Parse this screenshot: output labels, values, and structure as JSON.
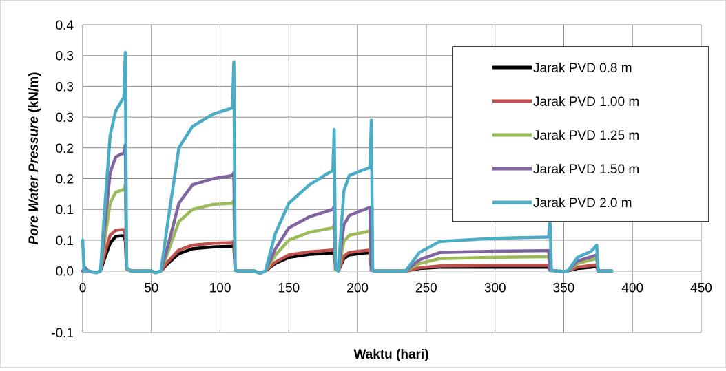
{
  "chart_data": {
    "type": "line",
    "title": "",
    "xlabel": "Waktu (hari)",
    "ylabel_italic": "Pore  Water Pressure",
    "ylabel_rest": " (kN/m)",
    "xlim": [
      0,
      450
    ],
    "ylim": [
      -0.1,
      0.4
    ],
    "x_ticks": [
      0,
      50,
      100,
      150,
      200,
      250,
      300,
      350,
      400,
      450
    ],
    "x_tick_labels": [
      "0",
      "50",
      "100",
      "150",
      "200",
      "250",
      "300",
      "350",
      "400",
      "450"
    ],
    "y_ticks": [
      -0.1,
      0.0,
      0.05,
      0.1,
      0.15,
      0.2,
      0.25,
      0.3,
      0.35,
      0.4
    ],
    "y_tick_labels": [
      "-0.1",
      "0.0",
      "0.1",
      "0.1",
      "0.2",
      "0.2",
      "0.3",
      "0.3",
      "0.3",
      "0.4"
    ],
    "grid": true,
    "legend_position": "top-right",
    "series": [
      {
        "name": "Jarak PVD 0.8 m",
        "color": "#000000",
        "points": [
          [
            0,
            0
          ],
          [
            2,
            0.002
          ],
          [
            4,
            0
          ],
          [
            10,
            -0.003
          ],
          [
            13,
            0
          ],
          [
            16,
            0.02
          ],
          [
            20,
            0.045
          ],
          [
            24,
            0.056
          ],
          [
            28,
            0.057
          ],
          [
            30,
            0.057
          ],
          [
            31,
            0.05
          ],
          [
            32,
            0.003
          ],
          [
            35,
            0
          ],
          [
            50,
            0
          ],
          [
            53,
            -0.003
          ],
          [
            57,
            0
          ],
          [
            62,
            0.012
          ],
          [
            70,
            0.028
          ],
          [
            80,
            0.036
          ],
          [
            95,
            0.039
          ],
          [
            109,
            0.04
          ],
          [
            110,
            0.042
          ],
          [
            111,
            0.001
          ],
          [
            113,
            0
          ],
          [
            125,
            0
          ],
          [
            129,
            -0.004
          ],
          [
            133,
            0
          ],
          [
            140,
            0.012
          ],
          [
            150,
            0.022
          ],
          [
            165,
            0.027
          ],
          [
            182,
            0.029
          ],
          [
            183,
            0.031
          ],
          [
            184,
            0.002
          ],
          [
            186,
            0
          ],
          [
            190,
            0.02
          ],
          [
            194,
            0.026
          ],
          [
            205,
            0.029
          ],
          [
            209,
            0.03
          ],
          [
            210,
            0.001
          ],
          [
            212,
            0
          ],
          [
            230,
            0
          ],
          [
            235,
            0
          ],
          [
            245,
            0.004
          ],
          [
            260,
            0.006
          ],
          [
            300,
            0.006
          ],
          [
            339,
            0.006
          ],
          [
            340,
            0.001
          ],
          [
            345,
            0
          ],
          [
            350,
            -0.001
          ],
          [
            353,
            0
          ],
          [
            360,
            0.004
          ],
          [
            370,
            0.006
          ],
          [
            374,
            0.007
          ],
          [
            375,
            0
          ],
          [
            385,
            0
          ]
        ]
      },
      {
        "name": "Jarak PVD 1.00 m",
        "color": "#c0504d",
        "points": [
          [
            0,
            0
          ],
          [
            2,
            0.003
          ],
          [
            4,
            0
          ],
          [
            10,
            -0.003
          ],
          [
            13,
            0
          ],
          [
            16,
            0.028
          ],
          [
            20,
            0.058
          ],
          [
            24,
            0.066
          ],
          [
            28,
            0.067
          ],
          [
            30,
            0.067
          ],
          [
            31,
            0.058
          ],
          [
            32,
            0.003
          ],
          [
            35,
            0
          ],
          [
            50,
            0
          ],
          [
            53,
            -0.003
          ],
          [
            57,
            0
          ],
          [
            62,
            0.015
          ],
          [
            70,
            0.034
          ],
          [
            80,
            0.042
          ],
          [
            95,
            0.045
          ],
          [
            109,
            0.046
          ],
          [
            110,
            0.048
          ],
          [
            111,
            0.001
          ],
          [
            113,
            0
          ],
          [
            125,
            0
          ],
          [
            129,
            -0.004
          ],
          [
            133,
            0
          ],
          [
            140,
            0.014
          ],
          [
            150,
            0.026
          ],
          [
            165,
            0.031
          ],
          [
            182,
            0.034
          ],
          [
            183,
            0.036
          ],
          [
            184,
            0.002
          ],
          [
            186,
            0
          ],
          [
            190,
            0.024
          ],
          [
            194,
            0.03
          ],
          [
            205,
            0.033
          ],
          [
            209,
            0.034
          ],
          [
            210,
            0.001
          ],
          [
            212,
            0
          ],
          [
            230,
            0
          ],
          [
            235,
            0
          ],
          [
            245,
            0.005
          ],
          [
            260,
            0.008
          ],
          [
            300,
            0.009
          ],
          [
            339,
            0.009
          ],
          [
            340,
            0.001
          ],
          [
            345,
            0
          ],
          [
            350,
            -0.001
          ],
          [
            353,
            0
          ],
          [
            360,
            0.006
          ],
          [
            370,
            0.009
          ],
          [
            374,
            0.01
          ],
          [
            375,
            0
          ],
          [
            385,
            0
          ]
        ]
      },
      {
        "name": "Jarak PVD 1.25 m",
        "color": "#9bbb59",
        "points": [
          [
            0,
            0
          ],
          [
            2,
            0.004
          ],
          [
            4,
            0
          ],
          [
            10,
            -0.003
          ],
          [
            13,
            0
          ],
          [
            16,
            0.05
          ],
          [
            20,
            0.11
          ],
          [
            24,
            0.128
          ],
          [
            28,
            0.131
          ],
          [
            30,
            0.132
          ],
          [
            31,
            0.14
          ],
          [
            32,
            0.004
          ],
          [
            35,
            0
          ],
          [
            50,
            0
          ],
          [
            53,
            -0.003
          ],
          [
            57,
            0
          ],
          [
            62,
            0.03
          ],
          [
            70,
            0.08
          ],
          [
            80,
            0.1
          ],
          [
            95,
            0.108
          ],
          [
            109,
            0.11
          ],
          [
            110,
            0.115
          ],
          [
            111,
            0.001
          ],
          [
            113,
            0
          ],
          [
            125,
            0
          ],
          [
            129,
            -0.004
          ],
          [
            133,
            0
          ],
          [
            140,
            0.025
          ],
          [
            150,
            0.05
          ],
          [
            165,
            0.063
          ],
          [
            182,
            0.07
          ],
          [
            183,
            0.075
          ],
          [
            184,
            0.002
          ],
          [
            186,
            0
          ],
          [
            190,
            0.048
          ],
          [
            194,
            0.058
          ],
          [
            205,
            0.063
          ],
          [
            209,
            0.065
          ],
          [
            210,
            0.001
          ],
          [
            212,
            0
          ],
          [
            230,
            0
          ],
          [
            235,
            0
          ],
          [
            245,
            0.012
          ],
          [
            260,
            0.02
          ],
          [
            300,
            0.022
          ],
          [
            339,
            0.023
          ],
          [
            340,
            0.001
          ],
          [
            345,
            0
          ],
          [
            350,
            -0.001
          ],
          [
            353,
            0
          ],
          [
            360,
            0.012
          ],
          [
            370,
            0.018
          ],
          [
            374,
            0.02
          ],
          [
            375,
            0
          ],
          [
            385,
            0
          ]
        ]
      },
      {
        "name": "Jarak PVD 1.50 m",
        "color": "#8064a2",
        "points": [
          [
            0,
            0
          ],
          [
            2,
            0.005
          ],
          [
            4,
            0
          ],
          [
            10,
            -0.003
          ],
          [
            13,
            0
          ],
          [
            16,
            0.07
          ],
          [
            20,
            0.16
          ],
          [
            24,
            0.185
          ],
          [
            28,
            0.19
          ],
          [
            30,
            0.191
          ],
          [
            31,
            0.205
          ],
          [
            32,
            0.005
          ],
          [
            35,
            0
          ],
          [
            50,
            0
          ],
          [
            53,
            -0.003
          ],
          [
            57,
            0
          ],
          [
            62,
            0.04
          ],
          [
            70,
            0.11
          ],
          [
            80,
            0.14
          ],
          [
            95,
            0.15
          ],
          [
            109,
            0.155
          ],
          [
            110,
            0.16
          ],
          [
            111,
            0.001
          ],
          [
            113,
            0
          ],
          [
            125,
            0
          ],
          [
            129,
            -0.004
          ],
          [
            133,
            0
          ],
          [
            140,
            0.035
          ],
          [
            150,
            0.07
          ],
          [
            165,
            0.088
          ],
          [
            182,
            0.1
          ],
          [
            183,
            0.105
          ],
          [
            184,
            0.003
          ],
          [
            186,
            0
          ],
          [
            190,
            0.075
          ],
          [
            194,
            0.09
          ],
          [
            205,
            0.1
          ],
          [
            209,
            0.103
          ],
          [
            210,
            0.001
          ],
          [
            212,
            0
          ],
          [
            230,
            0
          ],
          [
            235,
            0
          ],
          [
            245,
            0.018
          ],
          [
            260,
            0.03
          ],
          [
            300,
            0.032
          ],
          [
            339,
            0.033
          ],
          [
            340,
            0.001
          ],
          [
            345,
            0
          ],
          [
            350,
            -0.001
          ],
          [
            353,
            0
          ],
          [
            360,
            0.016
          ],
          [
            370,
            0.023
          ],
          [
            374,
            0.026
          ],
          [
            375,
            0
          ],
          [
            385,
            0
          ]
        ]
      },
      {
        "name": "Jarak PVD 2.0 m",
        "color": "#4bacc6",
        "points": [
          [
            0,
            0.05
          ],
          [
            1,
            0
          ],
          [
            4,
            0
          ],
          [
            10,
            -0.003
          ],
          [
            13,
            0
          ],
          [
            16,
            0.1
          ],
          [
            20,
            0.22
          ],
          [
            24,
            0.26
          ],
          [
            28,
            0.275
          ],
          [
            30,
            0.282
          ],
          [
            31,
            0.355
          ],
          [
            32,
            0.005
          ],
          [
            35,
            0
          ],
          [
            50,
            0
          ],
          [
            53,
            -0.003
          ],
          [
            57,
            0
          ],
          [
            62,
            0.08
          ],
          [
            70,
            0.2
          ],
          [
            80,
            0.235
          ],
          [
            95,
            0.255
          ],
          [
            105,
            0.262
          ],
          [
            109,
            0.265
          ],
          [
            110,
            0.34
          ],
          [
            111,
            0.001
          ],
          [
            113,
            0
          ],
          [
            125,
            0
          ],
          [
            129,
            -0.004
          ],
          [
            133,
            0
          ],
          [
            140,
            0.06
          ],
          [
            150,
            0.11
          ],
          [
            165,
            0.14
          ],
          [
            178,
            0.158
          ],
          [
            182,
            0.163
          ],
          [
            183,
            0.23
          ],
          [
            184,
            0.003
          ],
          [
            186,
            0
          ],
          [
            190,
            0.13
          ],
          [
            194,
            0.155
          ],
          [
            205,
            0.165
          ],
          [
            209,
            0.168
          ],
          [
            210,
            0.245
          ],
          [
            211,
            0.001
          ],
          [
            212,
            0
          ],
          [
            230,
            0
          ],
          [
            235,
            0
          ],
          [
            245,
            0.03
          ],
          [
            260,
            0.048
          ],
          [
            300,
            0.053
          ],
          [
            339,
            0.055
          ],
          [
            340,
            0.083
          ],
          [
            341,
            0.001
          ],
          [
            345,
            0
          ],
          [
            350,
            -0.001
          ],
          [
            353,
            0
          ],
          [
            360,
            0.022
          ],
          [
            370,
            0.032
          ],
          [
            374,
            0.042
          ],
          [
            375,
            0
          ],
          [
            385,
            0
          ]
        ]
      }
    ]
  }
}
